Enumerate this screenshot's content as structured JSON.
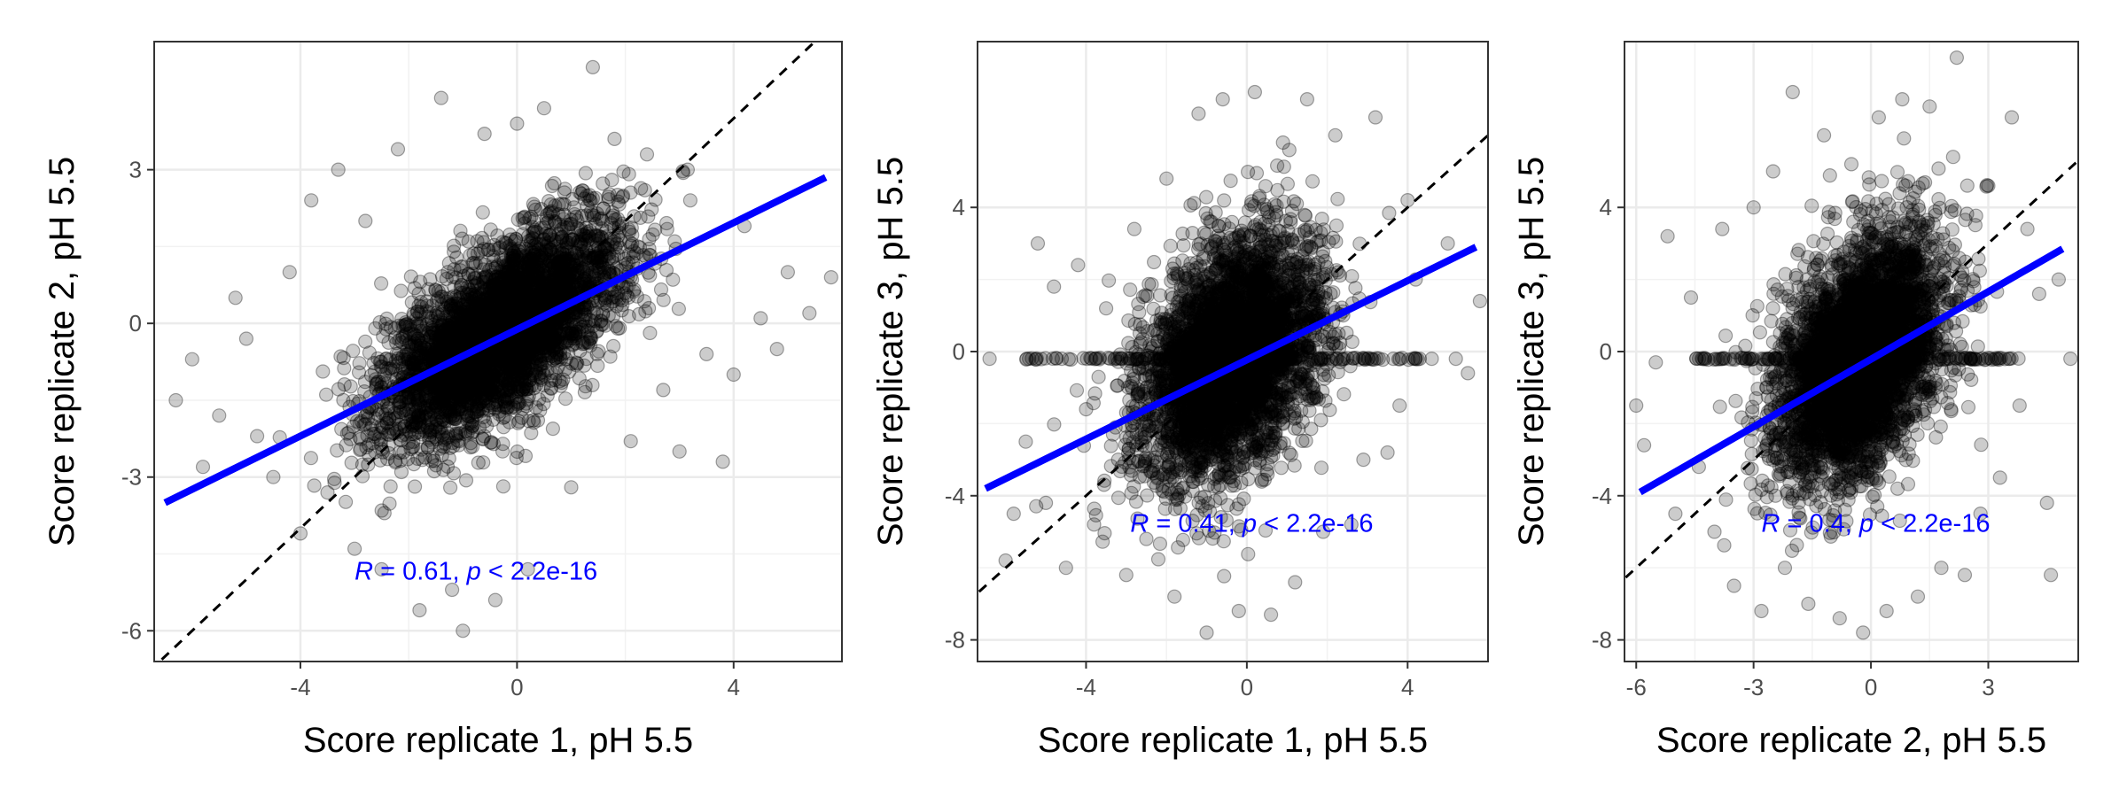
{
  "chart_data": [
    {
      "type": "scatter",
      "xlabel": "Score replicate 1, pH 5.5",
      "ylabel": "Score replicate 2, pH 5.5",
      "xlim": [
        -6.7,
        6.0
      ],
      "ylim": [
        -6.6,
        5.5
      ],
      "xticks": [
        -4,
        0,
        4
      ],
      "xtick_labels": [
        "-4",
        "0",
        "4"
      ],
      "yticks": [
        -6,
        -3,
        0,
        3
      ],
      "ytick_labels": [
        "-6",
        "-3",
        "0",
        "3"
      ],
      "grid": true,
      "point_color": "#000000",
      "fit_line": {
        "color": "#0000ff",
        "x": [
          -6.5,
          5.7
        ],
        "y": [
          -3.5,
          2.85
        ]
      },
      "identity_line": {
        "style": "dashed",
        "color": "#000000",
        "slope": 1,
        "intercept": 0
      },
      "annotation": {
        "r_var": "R",
        "r_text": " = 0.61, ",
        "p_var": "p",
        "p_text": " < 2.2e-16",
        "color": "#0000ff",
        "x": -3.0,
        "y": -5.0
      },
      "scatter_spread": {
        "x_mean": -0.3,
        "x_sd": 1.1,
        "noise_sd": 0.78,
        "slope": 0.6,
        "count": 4200
      },
      "outliers": [
        [
          -6.3,
          -1.5
        ],
        [
          -6.0,
          -0.7
        ],
        [
          -5.8,
          -2.8
        ],
        [
          -5.5,
          -1.8
        ],
        [
          -5.2,
          0.5
        ],
        [
          -5.0,
          -0.3
        ],
        [
          -4.8,
          -2.2
        ],
        [
          -4.5,
          -3.0
        ],
        [
          -4.2,
          1.0
        ],
        [
          -4.0,
          -4.1
        ],
        [
          -3.8,
          2.4
        ],
        [
          -3.5,
          -3.3
        ],
        [
          -3.3,
          3.0
        ],
        [
          -3.0,
          -4.4
        ],
        [
          -2.8,
          2.0
        ],
        [
          -2.5,
          -4.8
        ],
        [
          -2.2,
          3.4
        ],
        [
          -1.8,
          -5.6
        ],
        [
          -1.4,
          4.4
        ],
        [
          -1.2,
          -5.2
        ],
        [
          -1.0,
          -6.0
        ],
        [
          -0.6,
          3.7
        ],
        [
          -0.4,
          -5.4
        ],
        [
          0.0,
          3.9
        ],
        [
          0.2,
          -4.8
        ],
        [
          0.5,
          4.2
        ],
        [
          1.0,
          -3.2
        ],
        [
          1.4,
          5.0
        ],
        [
          1.8,
          3.6
        ],
        [
          2.1,
          -2.3
        ],
        [
          2.4,
          3.3
        ],
        [
          2.7,
          -1.3
        ],
        [
          3.0,
          -2.5
        ],
        [
          3.2,
          2.4
        ],
        [
          3.5,
          -0.6
        ],
        [
          3.8,
          -2.7
        ],
        [
          4.0,
          -1.0
        ],
        [
          4.2,
          1.9
        ],
        [
          4.5,
          0.1
        ],
        [
          4.8,
          -0.5
        ],
        [
          5.0,
          1.0
        ],
        [
          5.4,
          0.2
        ],
        [
          5.8,
          0.9
        ]
      ]
    },
    {
      "type": "scatter",
      "xlabel": "Score replicate 1, pH 5.5",
      "ylabel": "Score replicate 3, pH 5.5",
      "xlim": [
        -6.7,
        6.0
      ],
      "ylim": [
        -8.6,
        8.6
      ],
      "xticks": [
        -4,
        0,
        4
      ],
      "xtick_labels": [
        "-4",
        "0",
        "4"
      ],
      "yticks": [
        -8,
        -4,
        0,
        4
      ],
      "ytick_labels": [
        "-8",
        "-4",
        "0",
        "4"
      ],
      "grid": true,
      "point_color": "#000000",
      "fit_line": {
        "color": "#0000ff",
        "x": [
          -6.5,
          5.7
        ],
        "y": [
          -3.8,
          2.9
        ]
      },
      "identity_line": {
        "style": "dashed",
        "color": "#000000",
        "slope": 1,
        "intercept": 0
      },
      "annotation": {
        "r_var": "R",
        "r_text": " = 0.41, ",
        "p_var": "p",
        "p_text": " < 2.2e-16",
        "color": "#0000ff",
        "x": -2.9,
        "y": -5.0
      },
      "scatter_spread": {
        "x_mean": -0.4,
        "x_sd": 1.1,
        "noise_sd": 1.55,
        "slope": 0.55,
        "count": 4200
      },
      "band": {
        "y": -0.2,
        "x_from": -5.5,
        "x_to": 4.5,
        "count": 160
      },
      "outliers": [
        [
          -6.4,
          -0.2
        ],
        [
          -6.0,
          -5.8
        ],
        [
          -5.8,
          -4.5
        ],
        [
          -5.5,
          -2.5
        ],
        [
          -5.2,
          3.0
        ],
        [
          -5.0,
          -4.2
        ],
        [
          -4.8,
          1.8
        ],
        [
          -4.5,
          -6.0
        ],
        [
          -4.2,
          2.4
        ],
        [
          -4.0,
          -1.6
        ],
        [
          -3.8,
          -4.8
        ],
        [
          -3.5,
          1.2
        ],
        [
          -3.2,
          -3.0
        ],
        [
          -3.0,
          -6.2
        ],
        [
          -2.8,
          3.4
        ],
        [
          -2.5,
          -5.2
        ],
        [
          -2.0,
          4.8
        ],
        [
          -1.8,
          -6.8
        ],
        [
          -1.2,
          6.6
        ],
        [
          -1.0,
          -7.8
        ],
        [
          -0.6,
          7.0
        ],
        [
          -0.2,
          -7.2
        ],
        [
          0.2,
          7.2
        ],
        [
          0.6,
          -7.3
        ],
        [
          0.9,
          5.8
        ],
        [
          1.2,
          -6.4
        ],
        [
          1.5,
          7.0
        ],
        [
          1.9,
          -5.0
        ],
        [
          2.2,
          6.0
        ],
        [
          2.6,
          -4.8
        ],
        [
          2.9,
          -3.0
        ],
        [
          3.2,
          6.5
        ],
        [
          3.5,
          -2.8
        ],
        [
          3.8,
          -1.5
        ],
        [
          4.0,
          4.2
        ],
        [
          4.2,
          2.0
        ],
        [
          4.6,
          -0.2
        ],
        [
          5.0,
          3.0
        ],
        [
          5.2,
          -0.2
        ],
        [
          5.5,
          -0.6
        ],
        [
          5.8,
          1.4
        ]
      ]
    },
    {
      "type": "scatter",
      "xlabel": "Score replicate 2, pH 5.5",
      "ylabel": "Score replicate 3, pH 5.5",
      "xlim": [
        -6.3,
        5.3
      ],
      "ylim": [
        -8.6,
        8.6
      ],
      "xticks": [
        -6,
        -3,
        0,
        3
      ],
      "xtick_labels": [
        "-6",
        "-3",
        "0",
        "3"
      ],
      "yticks": [
        -8,
        -4,
        0,
        4
      ],
      "ytick_labels": [
        "-8",
        "-4",
        "0",
        "4"
      ],
      "grid": true,
      "point_color": "#000000",
      "fit_line": {
        "color": "#0000ff",
        "x": [
          -5.9,
          4.9
        ],
        "y": [
          -3.9,
          2.85
        ]
      },
      "identity_line": {
        "style": "dashed",
        "color": "#000000",
        "slope": 1,
        "intercept": 0
      },
      "annotation": {
        "r_var": "R",
        "r_text": " = 0.4, ",
        "p_var": "p",
        "p_text": " < 2.2e-16",
        "color": "#0000ff",
        "x": -2.8,
        "y": -5.0
      },
      "scatter_spread": {
        "x_mean": -0.3,
        "x_sd": 1.05,
        "noise_sd": 1.55,
        "slope": 0.62,
        "count": 4200
      },
      "band": {
        "y": -0.2,
        "x_from": -4.5,
        "x_to": 3.8,
        "count": 160
      },
      "outliers": [
        [
          -6.0,
          -1.5
        ],
        [
          -5.8,
          -2.6
        ],
        [
          -5.5,
          -0.3
        ],
        [
          -5.2,
          3.2
        ],
        [
          -5.0,
          -4.5
        ],
        [
          -4.6,
          1.5
        ],
        [
          -4.4,
          -3.2
        ],
        [
          -4.0,
          -5.0
        ],
        [
          -3.8,
          3.4
        ],
        [
          -3.5,
          -6.5
        ],
        [
          -3.0,
          4.0
        ],
        [
          -2.8,
          -7.2
        ],
        [
          -2.5,
          5.0
        ],
        [
          -2.2,
          -6.0
        ],
        [
          -2.0,
          7.2
        ],
        [
          -1.6,
          -7.0
        ],
        [
          -1.2,
          6.0
        ],
        [
          -0.8,
          -7.4
        ],
        [
          -0.5,
          5.2
        ],
        [
          -0.2,
          -7.8
        ],
        [
          0.2,
          6.5
        ],
        [
          0.4,
          -7.2
        ],
        [
          0.8,
          7.0
        ],
        [
          1.2,
          -6.8
        ],
        [
          1.5,
          6.8
        ],
        [
          1.8,
          -6.0
        ],
        [
          2.1,
          5.4
        ],
        [
          2.4,
          -6.2
        ],
        [
          2.8,
          -4.5
        ],
        [
          3.0,
          4.6
        ],
        [
          3.3,
          -3.5
        ],
        [
          3.6,
          6.5
        ],
        [
          3.8,
          -1.5
        ],
        [
          4.0,
          3.4
        ],
        [
          4.3,
          1.6
        ],
        [
          4.6,
          -6.2
        ],
        [
          4.8,
          2.0
        ],
        [
          5.1,
          -0.2
        ],
        [
          4.5,
          -4.2
        ]
      ]
    }
  ]
}
